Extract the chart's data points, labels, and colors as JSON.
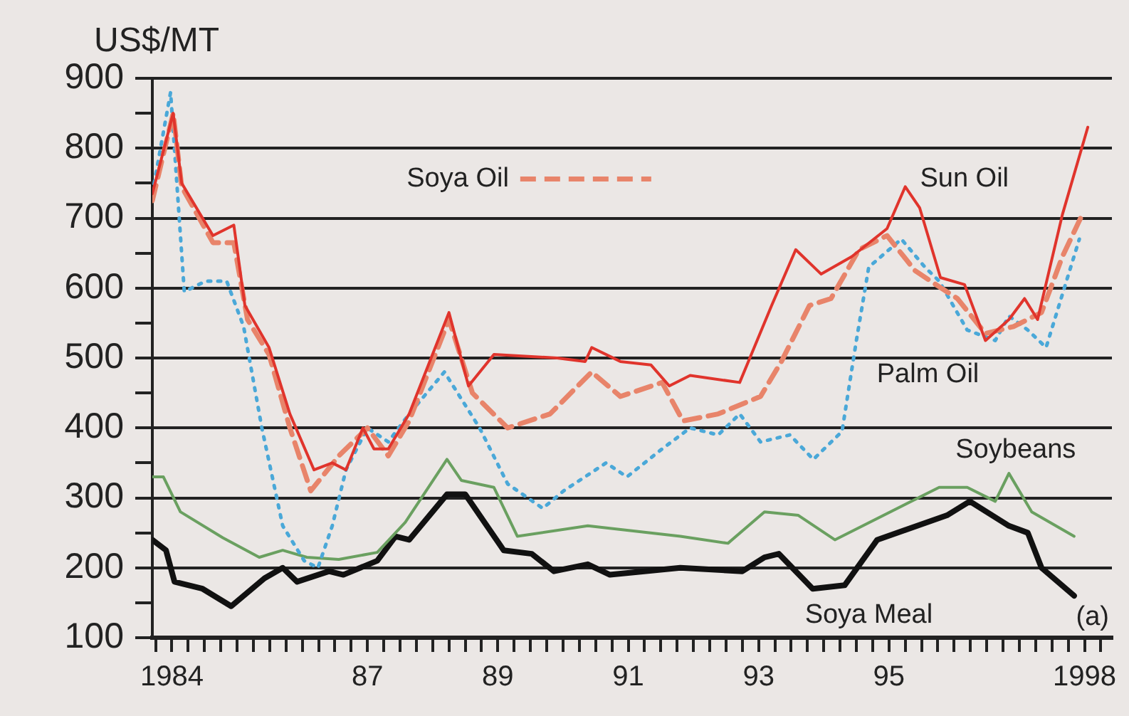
{
  "chart_data": {
    "type": "line",
    "ylabel": "US$/MT",
    "xlim": [
      1983.7,
      1998.42
    ],
    "ylim": [
      100,
      900
    ],
    "yticks": [
      100,
      {
        "value": 150,
        "label": null
      },
      200,
      {
        "value": 250,
        "label": null
      },
      300,
      {
        "value": 350,
        "label": null
      },
      400,
      {
        "value": 450,
        "label": null
      },
      500,
      {
        "value": 550,
        "label": null
      },
      600,
      {
        "value": 650,
        "label": null
      },
      700,
      {
        "value": 750,
        "label": null
      },
      800,
      {
        "value": 850,
        "label": null
      },
      900
    ],
    "xticks": [
      {
        "value": 1983.75,
        "label": null
      },
      {
        "value": 1984,
        "label": "1984"
      },
      {
        "value": 1984.25,
        "label": null
      },
      {
        "value": 1984.5,
        "label": null
      },
      {
        "value": 1984.75,
        "label": null
      },
      {
        "value": 1985,
        "label": null
      },
      {
        "value": 1985.25,
        "label": null
      },
      {
        "value": 1985.5,
        "label": null
      },
      {
        "value": 1985.75,
        "label": null
      },
      {
        "value": 1986,
        "label": null
      },
      {
        "value": 1986.25,
        "label": null
      },
      {
        "value": 1986.5,
        "label": null
      },
      {
        "value": 1986.75,
        "label": null
      },
      {
        "value": 1987,
        "label": "87"
      },
      {
        "value": 1987.25,
        "label": null
      },
      {
        "value": 1987.5,
        "label": null
      },
      {
        "value": 1987.75,
        "label": null
      },
      {
        "value": 1988,
        "label": null
      },
      {
        "value": 1988.25,
        "label": null
      },
      {
        "value": 1988.5,
        "label": null
      },
      {
        "value": 1988.75,
        "label": null
      },
      {
        "value": 1989,
        "label": "89"
      },
      {
        "value": 1989.25,
        "label": null
      },
      {
        "value": 1989.5,
        "label": null
      },
      {
        "value": 1989.75,
        "label": null
      },
      {
        "value": 1990,
        "label": null
      },
      {
        "value": 1990.25,
        "label": null
      },
      {
        "value": 1990.5,
        "label": null
      },
      {
        "value": 1990.75,
        "label": null
      },
      {
        "value": 1991,
        "label": "91"
      },
      {
        "value": 1991.25,
        "label": null
      },
      {
        "value": 1991.5,
        "label": null
      },
      {
        "value": 1991.75,
        "label": null
      },
      {
        "value": 1992,
        "label": null
      },
      {
        "value": 1992.25,
        "label": null
      },
      {
        "value": 1992.5,
        "label": null
      },
      {
        "value": 1992.75,
        "label": null
      },
      {
        "value": 1993,
        "label": "93"
      },
      {
        "value": 1993.25,
        "label": null
      },
      {
        "value": 1993.5,
        "label": null
      },
      {
        "value": 1993.75,
        "label": null
      },
      {
        "value": 1994,
        "label": null
      },
      {
        "value": 1994.25,
        "label": null
      },
      {
        "value": 1994.5,
        "label": null
      },
      {
        "value": 1994.75,
        "label": null
      },
      {
        "value": 1995,
        "label": "95"
      },
      {
        "value": 1995.25,
        "label": null
      },
      {
        "value": 1995.5,
        "label": null
      },
      {
        "value": 1995.75,
        "label": null
      },
      {
        "value": 1996,
        "label": null
      },
      {
        "value": 1996.25,
        "label": null
      },
      {
        "value": 1996.5,
        "label": null
      },
      {
        "value": 1996.75,
        "label": null
      },
      {
        "value": 1997,
        "label": null
      },
      {
        "value": 1997.25,
        "label": null
      },
      {
        "value": 1997.5,
        "label": null
      },
      {
        "value": 1997.75,
        "label": null
      },
      {
        "value": 1998,
        "label": "1998"
      },
      {
        "value": 1998.25,
        "label": null
      }
    ],
    "grid": "y",
    "marker": "none",
    "annotations": [
      "(a)"
    ],
    "series": [
      {
        "name": "Sun Oil",
        "color": "#e0342c",
        "line_style": "solid",
        "x": [
          1983.7,
          1984.02,
          1984.15,
          1984.63,
          1984.95,
          1985.12,
          1985.49,
          1985.81,
          1986.18,
          1986.46,
          1986.67,
          1986.93,
          1987.1,
          1987.32,
          1987.64,
          1988.25,
          1988.55,
          1988.94,
          1989.91,
          1990.34,
          1990.44,
          1990.88,
          1991.35,
          1991.63,
          1991.95,
          1992.71,
          1993.2,
          1993.57,
          1993.96,
          1994.43,
          1994.97,
          1995.25,
          1995.47,
          1995.79,
          1996.16,
          1996.48,
          1996.84,
          1997.08,
          1997.28,
          1997.66,
          1998.05
        ],
        "values": [
          735,
          850,
          750,
          675,
          690,
          575,
          515,
          420,
          340,
          350,
          340,
          400,
          370,
          370,
          420,
          565,
          460,
          505,
          500,
          495,
          515,
          495,
          490,
          460,
          475,
          465,
          575,
          655,
          620,
          645,
          685,
          745,
          715,
          615,
          605,
          525,
          555,
          585,
          555,
          705,
          830
        ]
      },
      {
        "name": "Soya Oil",
        "color": "#e8846a",
        "line_style": "dashed",
        "x": [
          1983.7,
          1984.02,
          1984.15,
          1984.63,
          1984.95,
          1985.16,
          1985.49,
          1985.81,
          1986.13,
          1986.56,
          1987,
          1987.32,
          1987.64,
          1988.25,
          1988.61,
          1989.15,
          1989.8,
          1990.44,
          1990.88,
          1991.52,
          1991.84,
          1992.38,
          1993.03,
          1993.35,
          1993.78,
          1994.11,
          1994.54,
          1994.97,
          1995.4,
          1995.72,
          1996.05,
          1996.48,
          1996.91,
          1997.34,
          1997.66,
          1997.99
        ],
        "values": [
          725,
          850,
          745,
          665,
          665,
          555,
          505,
          400,
          310,
          360,
          400,
          360,
          410,
          555,
          450,
          400,
          420,
          480,
          445,
          465,
          410,
          420,
          445,
          495,
          575,
          585,
          655,
          675,
          625,
          605,
          585,
          535,
          545,
          565,
          645,
          710
        ]
      },
      {
        "name": "Palm Oil",
        "color": "#4aa8d8",
        "line_style": "dotted",
        "x": [
          1983.7,
          1983.98,
          1984.19,
          1984.52,
          1984.84,
          1985.1,
          1985.38,
          1985.7,
          1986.03,
          1986.24,
          1986.46,
          1986.67,
          1987,
          1987.32,
          1987.64,
          1988.18,
          1988.72,
          1989.15,
          1989.69,
          1990.01,
          1990.66,
          1990.98,
          1991.52,
          1991.95,
          1992.38,
          1992.71,
          1993.03,
          1993.48,
          1993.84,
          1994.28,
          1994.5,
          1994.69,
          1995.19,
          1995.55,
          1995.77,
          1996.2,
          1996.63,
          1996.84,
          1997.13,
          1997.41,
          1997.92
        ],
        "values": [
          735,
          880,
          595,
          610,
          610,
          545,
          400,
          260,
          210,
          200,
          260,
          340,
          400,
          380,
          420,
          480,
          400,
          320,
          285,
          310,
          350,
          330,
          370,
          400,
          390,
          420,
          380,
          390,
          355,
          395,
          525,
          630,
          670,
          630,
          610,
          540,
          525,
          560,
          540,
          515,
          670
        ]
      },
      {
        "name": "Soybeans",
        "color": "#6aa060",
        "line_style": "solid",
        "x": [
          1983.7,
          1983.87,
          1984.13,
          1984.78,
          1985.34,
          1985.7,
          1986.07,
          1986.56,
          1987.15,
          1987.58,
          1988.22,
          1988.44,
          1988.94,
          1989.3,
          1990.38,
          1991.8,
          1992.53,
          1993.09,
          1993.61,
          1994.17,
          1995.77,
          1996.2,
          1996.63,
          1996.84,
          1997.19,
          1997.84
        ],
        "values": [
          330,
          330,
          280,
          243,
          215,
          225,
          215,
          212,
          222,
          265,
          355,
          325,
          315,
          245,
          260,
          245,
          235,
          280,
          275,
          240,
          315,
          315,
          295,
          335,
          280,
          245
        ]
      },
      {
        "name": "Soya Meal",
        "color": "#111111",
        "line_style": "solid",
        "x": [
          1983.7,
          1983.91,
          1984.04,
          1984.47,
          1984.91,
          1985.42,
          1985.7,
          1985.92,
          1986.41,
          1986.63,
          1987.15,
          1987.43,
          1987.64,
          1988.22,
          1988.5,
          1989.09,
          1989.52,
          1989.86,
          1990.38,
          1990.72,
          1991.8,
          1992.75,
          1993.09,
          1993.31,
          1993.83,
          1994.32,
          1994.82,
          1995.89,
          1996.24,
          1996.84,
          1997.13,
          1997.34,
          1997.84
        ],
        "values": [
          240,
          225,
          180,
          170,
          145,
          185,
          200,
          180,
          195,
          190,
          210,
          245,
          240,
          305,
          305,
          225,
          220,
          195,
          205,
          190,
          200,
          195,
          215,
          220,
          170,
          175,
          240,
          275,
          295,
          260,
          250,
          200,
          160
        ]
      }
    ]
  }
}
